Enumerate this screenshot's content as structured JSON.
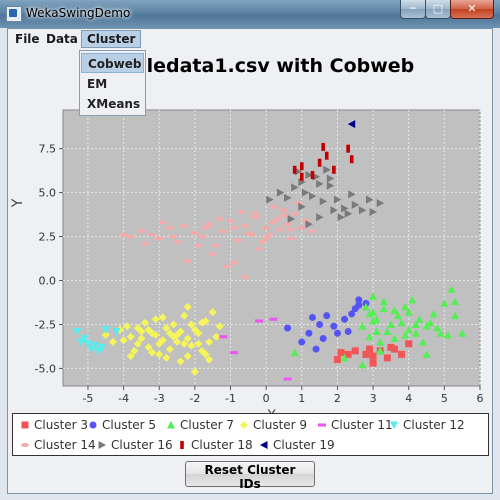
{
  "window": {
    "title": "WekaSwingDemo",
    "controls": {
      "minimize": "─",
      "maximize": "□",
      "close": "✕"
    }
  },
  "menubar": {
    "items": [
      "File",
      "Data",
      "Cluster"
    ],
    "open_menu": "Cluster",
    "dropdown": [
      "Cobweb",
      "EM",
      "XMeans"
    ],
    "highlighted": "Cobweb"
  },
  "chart_data": {
    "type": "scatter",
    "title": "…pledata1.csv with Cobweb",
    "title_visible": "pledata1.csv with Cobweb",
    "xlabel": "X",
    "ylabel": "Y",
    "xlim": [
      -5.7,
      6.0
    ],
    "ylim": [
      -6.0,
      9.7
    ],
    "xticks": [
      -5,
      -4,
      -3,
      -2,
      -1,
      0,
      1,
      2,
      3,
      4,
      5,
      6
    ],
    "yticks": [
      -5.0,
      -2.5,
      0.0,
      2.5,
      5.0,
      7.5
    ],
    "grid": true,
    "plot_background": "#c0c0c0",
    "legend_position": "bottom",
    "series": [
      {
        "name": "Cluster 3",
        "marker": "square",
        "color": "#f25555",
        "points": [
          [
            2.0,
            -4.5
          ],
          [
            2.3,
            -4.2
          ],
          [
            2.5,
            -4.0
          ],
          [
            2.8,
            -4.2
          ],
          [
            3.0,
            -4.7
          ],
          [
            3.2,
            -4.0
          ],
          [
            3.5,
            -3.8
          ],
          [
            3.8,
            -4.2
          ],
          [
            4.0,
            -3.6
          ],
          [
            2.1,
            -4.1
          ],
          [
            2.9,
            -3.9
          ],
          [
            3.4,
            -4.4
          ],
          [
            3.6,
            -3.9
          ],
          [
            3.0,
            -4.3
          ]
        ]
      },
      {
        "name": "Cluster 5",
        "marker": "circle",
        "color": "#5555f5",
        "points": [
          [
            0.6,
            -2.7
          ],
          [
            1.0,
            -3.5
          ],
          [
            1.2,
            -3.0
          ],
          [
            1.3,
            -2.1
          ],
          [
            1.5,
            -2.5
          ],
          [
            1.6,
            -3.3
          ],
          [
            1.7,
            -2.0
          ],
          [
            1.9,
            -2.6
          ],
          [
            2.0,
            -3.0
          ],
          [
            2.2,
            -2.2
          ],
          [
            2.3,
            -2.9
          ],
          [
            2.4,
            -1.9
          ],
          [
            2.5,
            -1.6
          ],
          [
            2.6,
            -1.1
          ],
          [
            2.6,
            -1.4
          ],
          [
            1.4,
            -3.9
          ],
          [
            2.8,
            -1.3
          ]
        ]
      },
      {
        "name": "Cluster 7",
        "marker": "triangle",
        "color": "#55ee55",
        "points": [
          [
            2.8,
            -1.5
          ],
          [
            3.0,
            -1.8
          ],
          [
            3.1,
            -2.2
          ],
          [
            3.3,
            -1.6
          ],
          [
            3.5,
            -2.5
          ],
          [
            3.7,
            -2.0
          ],
          [
            3.9,
            -1.5
          ],
          [
            4.0,
            -2.8
          ],
          [
            4.2,
            -3.0
          ],
          [
            4.3,
            -2.2
          ],
          [
            4.5,
            -2.6
          ],
          [
            4.7,
            -1.9
          ],
          [
            4.9,
            -3.0
          ],
          [
            5.0,
            -1.3
          ],
          [
            5.2,
            -0.5
          ],
          [
            5.3,
            -1.2
          ],
          [
            5.5,
            -3.0
          ],
          [
            2.9,
            -3.2
          ],
          [
            3.2,
            -3.5
          ],
          [
            3.4,
            -2.9
          ],
          [
            2.7,
            -4.8
          ],
          [
            3.6,
            -3.3
          ],
          [
            3.0,
            -0.9
          ],
          [
            4.1,
            -1.1
          ],
          [
            4.4,
            -3.5
          ],
          [
            4.6,
            -2.4
          ],
          [
            5.1,
            -3.1
          ],
          [
            3.8,
            -2.4
          ],
          [
            3.1,
            -2.9
          ],
          [
            2.7,
            -2.6
          ],
          [
            4.8,
            -2.7
          ],
          [
            4.0,
            -1.8
          ],
          [
            3.3,
            -1.2
          ],
          [
            3.6,
            -1.7
          ],
          [
            4.2,
            -2.5
          ],
          [
            3.9,
            -3.1
          ],
          [
            5.3,
            -2.0
          ],
          [
            3.0,
            -2.3
          ],
          [
            2.9,
            -1.9
          ],
          [
            4.5,
            -4.2
          ],
          [
            3.2,
            -4.0
          ],
          [
            0.8,
            -4.1
          ],
          [
            2.2,
            -4.4
          ]
        ]
      },
      {
        "name": "Cluster 9",
        "marker": "diamond",
        "color": "#f5f55a",
        "points": [
          [
            -4.5,
            -3.1
          ],
          [
            -4.3,
            -3.5
          ],
          [
            -4.1,
            -2.8
          ],
          [
            -3.9,
            -2.6
          ],
          [
            -3.8,
            -3.2
          ],
          [
            -3.6,
            -3.6
          ],
          [
            -3.5,
            -2.9
          ],
          [
            -3.4,
            -2.4
          ],
          [
            -3.3,
            -3.8
          ],
          [
            -3.2,
            -3.0
          ],
          [
            -3.1,
            -2.2
          ],
          [
            -3.0,
            -4.2
          ],
          [
            -2.9,
            -3.4
          ],
          [
            -2.8,
            -2.7
          ],
          [
            -2.7,
            -3.9
          ],
          [
            -2.6,
            -2.5
          ],
          [
            -2.5,
            -3.1
          ],
          [
            -2.4,
            -4.6
          ],
          [
            -2.3,
            -2.0
          ],
          [
            -2.2,
            -3.3
          ],
          [
            -2.1,
            -3.7
          ],
          [
            -2.0,
            -2.8
          ],
          [
            -1.9,
            -3.0
          ],
          [
            -1.8,
            -4.0
          ],
          [
            -1.7,
            -2.3
          ],
          [
            -1.6,
            -3.5
          ],
          [
            -1.5,
            -1.8
          ],
          [
            -1.4,
            -3.2
          ],
          [
            -1.3,
            -2.6
          ],
          [
            -3.7,
            -4.0
          ],
          [
            -3.0,
            -3.6
          ],
          [
            -2.6,
            -3.2
          ],
          [
            -2.9,
            -2.1
          ],
          [
            -2.2,
            -4.3
          ],
          [
            -1.8,
            -2.4
          ],
          [
            -3.3,
            -2.8
          ],
          [
            -2.4,
            -2.9
          ],
          [
            -2.0,
            -5.2
          ],
          [
            -1.6,
            -4.5
          ],
          [
            -3.5,
            -3.3
          ],
          [
            -2.7,
            -3.0
          ],
          [
            -3.1,
            -3.1
          ],
          [
            -2.5,
            -3.5
          ],
          [
            -2.1,
            -2.5
          ],
          [
            -1.9,
            -3.6
          ],
          [
            -3.6,
            -2.7
          ],
          [
            -2.8,
            -4.4
          ],
          [
            -2.3,
            -3.6
          ],
          [
            -1.7,
            -4.2
          ],
          [
            -4.0,
            -3.4
          ],
          [
            -3.8,
            -4.3
          ],
          [
            -3.2,
            -4.1
          ],
          [
            -2.2,
            -1.5
          ]
        ]
      },
      {
        "name": "Cluster 11",
        "marker": "dash",
        "color": "#ee55ee",
        "points": [
          [
            -1.2,
            -3.2
          ],
          [
            -0.9,
            -4.1
          ],
          [
            -0.2,
            -2.3
          ],
          [
            0.2,
            -2.2
          ],
          [
            0.6,
            -5.6
          ]
        ]
      },
      {
        "name": "Cluster 12",
        "marker": "triangle-down",
        "color": "#55eeee",
        "points": [
          [
            -5.3,
            -2.9
          ],
          [
            -5.1,
            -3.3
          ],
          [
            -5.0,
            -3.6
          ],
          [
            -4.9,
            -3.9
          ],
          [
            -4.8,
            -3.7
          ],
          [
            -4.7,
            -4.0
          ],
          [
            -4.5,
            -2.8
          ],
          [
            -4.2,
            -2.9
          ],
          [
            -5.2,
            -3.5
          ],
          [
            -4.6,
            -3.8
          ]
        ]
      },
      {
        "name": "Cluster 14",
        "marker": "ellipse",
        "color": "#f5aaaa",
        "points": [
          [
            -3.8,
            2.5
          ],
          [
            -3.5,
            2.8
          ],
          [
            -3.2,
            2.6
          ],
          [
            -3.0,
            2.4
          ],
          [
            -2.7,
            3.0
          ],
          [
            -2.5,
            2.2
          ],
          [
            -2.3,
            3.1
          ],
          [
            -2.0,
            2.7
          ],
          [
            -1.8,
            2.5
          ],
          [
            -1.6,
            3.2
          ],
          [
            -1.4,
            2.0
          ],
          [
            -1.2,
            2.8
          ],
          [
            -1.0,
            3.4
          ],
          [
            -0.8,
            2.3
          ],
          [
            -0.6,
            3.1
          ],
          [
            -0.4,
            2.6
          ],
          [
            -0.3,
            3.6
          ],
          [
            -0.1,
            2.2
          ],
          [
            0.0,
            3.0
          ],
          [
            0.1,
            2.6
          ],
          [
            0.3,
            3.5
          ],
          [
            0.4,
            2.9
          ],
          [
            0.5,
            4.0
          ],
          [
            0.6,
            3.2
          ],
          [
            0.7,
            2.4
          ],
          [
            0.8,
            3.8
          ],
          [
            1.0,
            3.0
          ],
          [
            1.1,
            3.4
          ],
          [
            1.3,
            2.8
          ],
          [
            -1.9,
            2.0
          ],
          [
            -1.5,
            1.5
          ],
          [
            -0.9,
            1.0
          ],
          [
            -0.6,
            0.2
          ],
          [
            -0.3,
            3.8
          ],
          [
            0.2,
            4.2
          ],
          [
            0.9,
            4.4
          ],
          [
            -2.2,
            1.1
          ],
          [
            -1.1,
            0.8
          ],
          [
            -2.9,
            3.3
          ],
          [
            -0.2,
            1.8
          ],
          [
            -1.3,
            3.5
          ],
          [
            0.5,
            3.7
          ],
          [
            -0.7,
            3.9
          ],
          [
            -4.0,
            2.6
          ],
          [
            -3.4,
            2.1
          ],
          [
            0.0,
            2.4
          ],
          [
            -0.5,
            2.7
          ],
          [
            0.2,
            3.3
          ],
          [
            -1.7,
            3.0
          ],
          [
            -2.6,
            2.5
          ],
          [
            0.7,
            2.9
          ],
          [
            -0.9,
            3.0
          ]
        ]
      },
      {
        "name": "Cluster 16",
        "marker": "triangle-right",
        "color": "#7a7a7a",
        "points": [
          [
            0.1,
            4.6
          ],
          [
            0.4,
            5.0
          ],
          [
            0.6,
            4.7
          ],
          [
            0.8,
            5.3
          ],
          [
            0.9,
            6.2
          ],
          [
            1.0,
            5.6
          ],
          [
            1.1,
            5.0
          ],
          [
            1.2,
            6.0
          ],
          [
            1.3,
            4.8
          ],
          [
            1.4,
            5.9
          ],
          [
            1.5,
            5.5
          ],
          [
            1.6,
            4.5
          ],
          [
            1.7,
            6.3
          ],
          [
            1.8,
            5.4
          ],
          [
            1.9,
            4.0
          ],
          [
            2.0,
            4.6
          ],
          [
            2.1,
            3.6
          ],
          [
            2.2,
            4.1
          ],
          [
            2.3,
            3.8
          ],
          [
            2.5,
            4.3
          ],
          [
            2.7,
            4.0
          ],
          [
            2.9,
            4.6
          ],
          [
            3.0,
            3.9
          ],
          [
            3.2,
            4.4
          ],
          [
            1.5,
            3.6
          ],
          [
            1.2,
            3.2
          ],
          [
            1.8,
            5.8
          ],
          [
            1.0,
            4.2
          ],
          [
            0.7,
            3.5
          ],
          [
            2.4,
            4.9
          ]
        ]
      },
      {
        "name": "Cluster 18",
        "marker": "bar",
        "color": "#c00000",
        "points": [
          [
            0.8,
            6.3
          ],
          [
            1.0,
            6.5
          ],
          [
            1.3,
            6.0
          ],
          [
            1.5,
            6.7
          ],
          [
            1.7,
            7.1
          ],
          [
            1.9,
            6.3
          ],
          [
            1.6,
            7.6
          ],
          [
            2.3,
            7.5
          ],
          [
            2.4,
            6.9
          ],
          [
            1.0,
            5.9
          ]
        ]
      },
      {
        "name": "Cluster 19",
        "marker": "triangle-left",
        "color": "#00008b",
        "points": [
          [
            2.4,
            8.9
          ]
        ]
      }
    ]
  },
  "legend": {
    "rows": [
      [
        "Cluster 3",
        "Cluster 5",
        "Cluster 7",
        "Cluster 9",
        "Cluster 11",
        "Cluster 12"
      ],
      [
        "Cluster 14",
        "Cluster 16",
        "Cluster 18",
        "Cluster 19"
      ]
    ]
  },
  "buttons": {
    "reset": "Reset Cluster IDs"
  }
}
